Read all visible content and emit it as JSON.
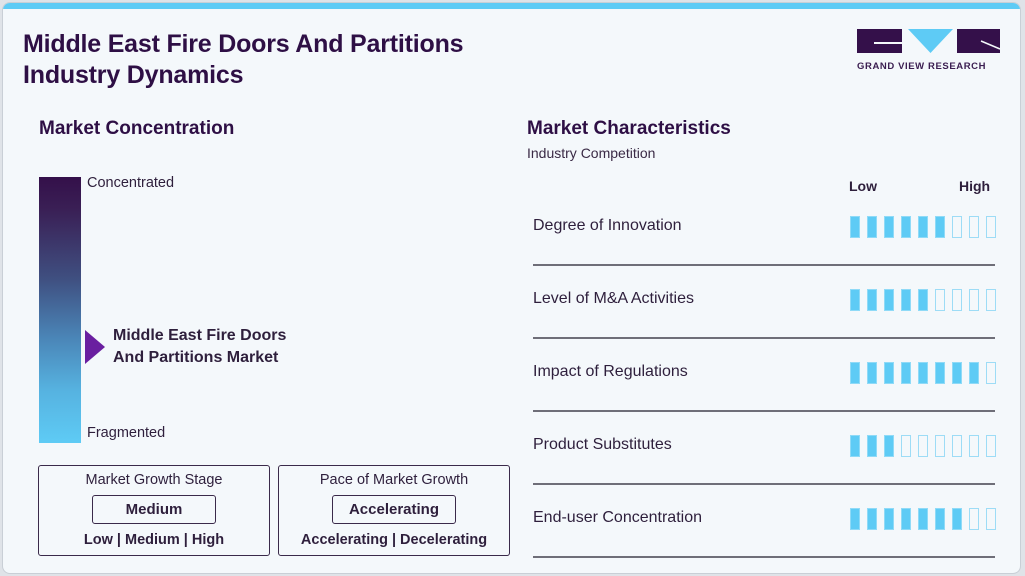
{
  "header": {
    "title_line1": "Middle East Fire Doors And Partitions",
    "title_line2": "Industry Dynamics",
    "logo_text": "GRAND VIEW RESEARCH"
  },
  "colors": {
    "accent_cyan": "#5ecbf5",
    "brand_purple": "#2e0f45",
    "marker_purple": "#6a1fa0"
  },
  "concentration": {
    "heading": "Market Concentration",
    "top_label": "Concentrated",
    "bottom_label": "Fragmented",
    "market_line1": "Middle East Fire Doors",
    "market_line2": "And Partitions Market"
  },
  "growth_stage": {
    "title": "Market Growth Stage",
    "value": "Medium",
    "options": "Low  |  Medium  |  High"
  },
  "growth_pace": {
    "title": "Pace of Market Growth",
    "value": "Accelerating",
    "options": "Accelerating  |  Decelerating"
  },
  "characteristics": {
    "heading": "Market Characteristics",
    "subheading": "Industry Competition",
    "scale_low": "Low",
    "scale_high": "High",
    "max": 9,
    "rows": [
      {
        "label": "Degree of Innovation",
        "value": 6
      },
      {
        "label": "Level of M&A Activities",
        "value": 5
      },
      {
        "label": "Impact of Regulations",
        "value": 8
      },
      {
        "label": "Product Substitutes",
        "value": 3
      },
      {
        "label": "End-user Concentration",
        "value": 7
      }
    ]
  },
  "chart_data": {
    "type": "table",
    "title": "Middle East Fire Doors And Partitions Industry Dynamics",
    "categories": [
      "Degree of Innovation",
      "Level of M&A Activities",
      "Impact of Regulations",
      "Product Substitutes",
      "End-user Concentration"
    ],
    "values": [
      6,
      5,
      8,
      3,
      7
    ],
    "scale": {
      "min_label": "Low",
      "max_label": "High",
      "max": 9
    },
    "market_concentration": "Fragmented-to-moderate (marker at ~35% from bottom)",
    "market_growth_stage": "Medium",
    "pace_of_market_growth": "Accelerating"
  }
}
